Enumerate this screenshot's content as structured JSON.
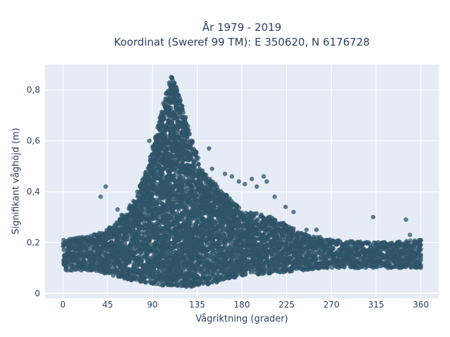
{
  "chart_data": {
    "type": "scatter",
    "title": "År 1979 - 2019",
    "subtitle": "Koordinat (Sweref 99 TM): E 350620, N 6176728",
    "xlabel": "Vågriktning (grader)",
    "ylabel": "Signifikant våghöjd (m)",
    "xlim": [
      -18,
      378
    ],
    "ylim": [
      -0.02,
      0.9
    ],
    "x_ticks": [
      0,
      45,
      90,
      135,
      180,
      225,
      270,
      315,
      360
    ],
    "x_tick_labels": [
      "0",
      "45",
      "90",
      "135",
      "180",
      "225",
      "270",
      "315",
      "360"
    ],
    "y_ticks": [
      0,
      0.2,
      0.4,
      0.6,
      0.8
    ],
    "y_tick_labels": [
      "0",
      "0,2",
      "0,4",
      "0,6",
      "0,8"
    ],
    "grid": true,
    "marker_color": "#2f5468",
    "plot_background": "#e5ecf6",
    "envelope": [
      {
        "x": 0,
        "y_min": 0.09,
        "y_max": 0.21
      },
      {
        "x": 30,
        "y_min": 0.09,
        "y_max": 0.23
      },
      {
        "x": 50,
        "y_min": 0.07,
        "y_max": 0.27
      },
      {
        "x": 70,
        "y_min": 0.05,
        "y_max": 0.36
      },
      {
        "x": 85,
        "y_min": 0.04,
        "y_max": 0.5
      },
      {
        "x": 100,
        "y_min": 0.03,
        "y_max": 0.74
      },
      {
        "x": 108,
        "y_min": 0.03,
        "y_max": 0.86
      },
      {
        "x": 115,
        "y_min": 0.03,
        "y_max": 0.8
      },
      {
        "x": 125,
        "y_min": 0.02,
        "y_max": 0.66
      },
      {
        "x": 140,
        "y_min": 0.03,
        "y_max": 0.48
      },
      {
        "x": 160,
        "y_min": 0.05,
        "y_max": 0.4
      },
      {
        "x": 180,
        "y_min": 0.07,
        "y_max": 0.33
      },
      {
        "x": 210,
        "y_min": 0.08,
        "y_max": 0.3
      },
      {
        "x": 240,
        "y_min": 0.09,
        "y_max": 0.24
      },
      {
        "x": 270,
        "y_min": 0.1,
        "y_max": 0.21
      },
      {
        "x": 310,
        "y_min": 0.1,
        "y_max": 0.2
      },
      {
        "x": 360,
        "y_min": 0.1,
        "y_max": 0.21
      }
    ],
    "outliers": [
      {
        "x": 43,
        "y": 0.42
      },
      {
        "x": 38,
        "y": 0.38
      },
      {
        "x": 55,
        "y": 0.33
      },
      {
        "x": 87,
        "y": 0.6
      },
      {
        "x": 147,
        "y": 0.57
      },
      {
        "x": 150,
        "y": 0.49
      },
      {
        "x": 163,
        "y": 0.47
      },
      {
        "x": 170,
        "y": 0.46
      },
      {
        "x": 177,
        "y": 0.44
      },
      {
        "x": 183,
        "y": 0.43
      },
      {
        "x": 190,
        "y": 0.45
      },
      {
        "x": 195,
        "y": 0.42
      },
      {
        "x": 202,
        "y": 0.46
      },
      {
        "x": 205,
        "y": 0.44
      },
      {
        "x": 213,
        "y": 0.38
      },
      {
        "x": 224,
        "y": 0.34
      },
      {
        "x": 232,
        "y": 0.32
      },
      {
        "x": 245,
        "y": 0.25
      },
      {
        "x": 255,
        "y": 0.25
      },
      {
        "x": 312,
        "y": 0.3
      },
      {
        "x": 345,
        "y": 0.29
      },
      {
        "x": 349,
        "y": 0.23
      },
      {
        "x": 338,
        "y": 0.13
      },
      {
        "x": 327,
        "y": 0.1
      }
    ]
  }
}
